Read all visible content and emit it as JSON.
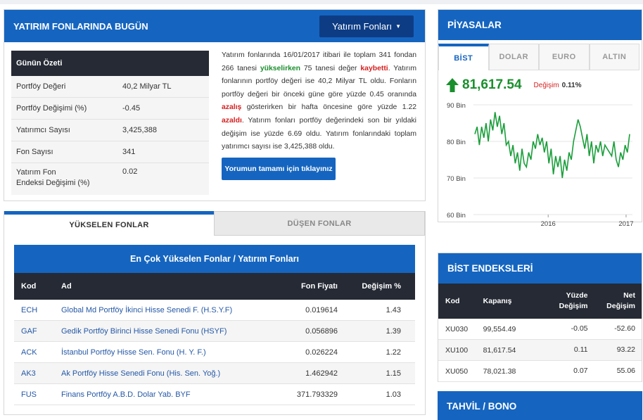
{
  "main": {
    "title": "YATIRIM FONLARINDA BUGÜN",
    "dropdown_label": "Yatırım Fonları",
    "summary": {
      "header": "Günün Özeti",
      "rows": [
        {
          "label": "Portföy Değeri",
          "value": "40,2 Milyar TL"
        },
        {
          "label": "Portföy Değişimi (%)",
          "value": "-0.45"
        },
        {
          "label": "Yatırımcı Sayısı",
          "value": "3,425,388"
        },
        {
          "label": "Fon Sayısı",
          "value": "341"
        },
        {
          "label_line1": "Yatırım Fon",
          "label_line2": "Endeksi Değişimi (%)",
          "value": "0.02"
        }
      ]
    },
    "description": {
      "p1": "Yatırım fonlarında 16/01/2017 itibari ile toplam 341 fondan 266 tanesi ",
      "up_word": "yükselirken",
      "p2": " 75 tanesi değer ",
      "loss_word": "kaybetti",
      "p3": ". Yatırım fonlarının portföy değeri ise 40,2 Milyar TL oldu. Fonların portföy değeri bir önceki güne göre yüzde 0.45 oranında ",
      "down_word": "azalış",
      "p4": " gösterirken bir hafta öncesine göre yüzde 1.22 ",
      "down_word2": "azaldı",
      "p5": ". Yatırım fonları portföy değerindeki son bir yıldaki değişim ise yüzde 6.69 oldu. Yatırım fonlarındaki toplam yatırımcı sayısı ise 3,425,388 oldu."
    },
    "cta_label": "Yorumun tamamı için tıklayınız"
  },
  "funds": {
    "tabs": [
      "YÜKSELEN FONLAR",
      "DÜŞEN FONLAR"
    ],
    "table_title": "En Çok Yükselen Fonlar / Yatırım Fonları",
    "columns": [
      "Kod",
      "Ad",
      "Fon Fiyatı",
      "Değişim %"
    ],
    "rows": [
      {
        "kod": "ECH",
        "ad": "Global Md Portföy İkinci Hisse Senedi F. (H.S.Y.F)",
        "fiyat": "0.019614",
        "degisim": "1.43"
      },
      {
        "kod": "GAF",
        "ad": "Gedik Portföy Birinci Hisse Senedi Fonu (HSYF)",
        "fiyat": "0.056896",
        "degisim": "1.39"
      },
      {
        "kod": "ACK",
        "ad": "İstanbul Portföy Hisse Sen. Fonu (H. Y. F.)",
        "fiyat": "0.026224",
        "degisim": "1.22"
      },
      {
        "kod": "AK3",
        "ad": "Ak Portföy Hisse Senedi Fonu (His. Sen. Yoğ.)",
        "fiyat": "1.462942",
        "degisim": "1.15"
      },
      {
        "kod": "FUS",
        "ad": "Finans Portföy A.B.D. Dolar Yab. BYF",
        "fiyat": "371.793329",
        "degisim": "1.03"
      }
    ]
  },
  "piyasalar": {
    "title": "PİYASALAR",
    "tabs": [
      "BİST",
      "DOLAR",
      "EURO",
      "ALTIN"
    ],
    "value": "81,617.54",
    "change_label": "Değişim",
    "change_pct": "0.11%",
    "up_color": "#1a8f2d",
    "chart_data": {
      "type": "line",
      "y_ticks": [
        "90 Bin",
        "80 Bin",
        "70 Bin",
        "60 Bin"
      ],
      "ylim": [
        60000,
        90000
      ],
      "x_ticks": [
        "2016",
        "2017"
      ],
      "series": [
        {
          "color": "#1a9e3a",
          "x_range": [
            "2015-09",
            "2017-01"
          ],
          "values": [
            82000,
            84000,
            79000,
            84000,
            81000,
            85000,
            80000,
            86000,
            83000,
            88000,
            84000,
            87000,
            82000,
            85000,
            79000,
            80000,
            76000,
            79000,
            74000,
            77000,
            72000,
            78000,
            74000,
            73000,
            77000,
            75000,
            80000,
            78000,
            82000,
            79000,
            81000,
            77000,
            80000,
            74000,
            78000,
            71000,
            76000,
            73000,
            76000,
            70000,
            75000,
            72000,
            77000,
            75000,
            80000,
            83000,
            86000,
            84000,
            81000,
            78000,
            82000,
            76000,
            80000,
            74000,
            79000,
            77000,
            80000,
            76000,
            79000,
            78000,
            77000,
            76000,
            80000,
            75000,
            73000,
            77000,
            75000,
            79000,
            77000,
            82000
          ]
        }
      ]
    }
  },
  "bist": {
    "title": "BİST ENDEKSLERİ",
    "columns": {
      "kod": "Kod",
      "kapanis": "Kapanış",
      "yuzde1": "Yüzde",
      "yuzde2": "Değişim",
      "net1": "Net",
      "net2": "Değişim"
    },
    "rows": [
      {
        "kod": "XU030",
        "kapanis": "99,554.49",
        "yuzde": "-0.05",
        "net": "-52.60"
      },
      {
        "kod": "XU100",
        "kapanis": "81,617.54",
        "yuzde": "0.11",
        "net": "93.22"
      },
      {
        "kod": "XU050",
        "kapanis": "78,021.38",
        "yuzde": "0.07",
        "net": "55.06"
      }
    ]
  },
  "tahvil": {
    "title": "TAHVİL / BONO"
  },
  "colors": {
    "brand_blue": "#1565c0",
    "dark_header": "#252a34",
    "positive": "#1a8f2d",
    "negative": "#d62121"
  }
}
